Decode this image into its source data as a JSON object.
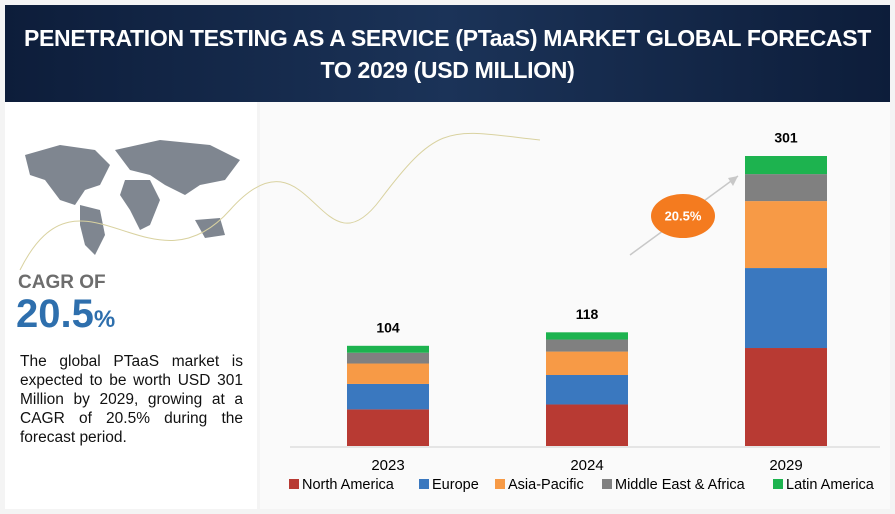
{
  "chart_data": {
    "type": "stacked_bar",
    "title": "PENETRATION TESTING AS A SERVICE (PTaaS) MARKET GLOBAL FORECAST TO 2029 (USD MILLION)",
    "categories": [
      "2023",
      "2024",
      "2029"
    ],
    "series": [
      {
        "name": "North America",
        "color": "#b83a33",
        "values": [
          38.0,
          43.1,
          101.7
        ]
      },
      {
        "name": "Europe",
        "color": "#3a78bf",
        "values": [
          26.4,
          30.6,
          83.0
        ]
      },
      {
        "name": "Asia-Pacific",
        "color": "#f79a46",
        "values": [
          21.2,
          24.3,
          69.5
        ]
      },
      {
        "name": "Middle East & Africa",
        "color": "#808080",
        "values": [
          11.2,
          12.5,
          28.0
        ]
      },
      {
        "name": "Latin America",
        "color": "#1db34f",
        "values": [
          7.2,
          7.5,
          18.8
        ]
      }
    ],
    "totals": [
      104,
      118,
      301
    ],
    "growth_label": "20.5%",
    "legend": "bottom"
  },
  "cagr": {
    "label": "CAGR OF",
    "value": "20.5",
    "unit": "%"
  },
  "description": "The global PTaaS market is expected to be worth USD 301 Million by 2029, growing at a CAGR of 20.5% during the forecast period."
}
